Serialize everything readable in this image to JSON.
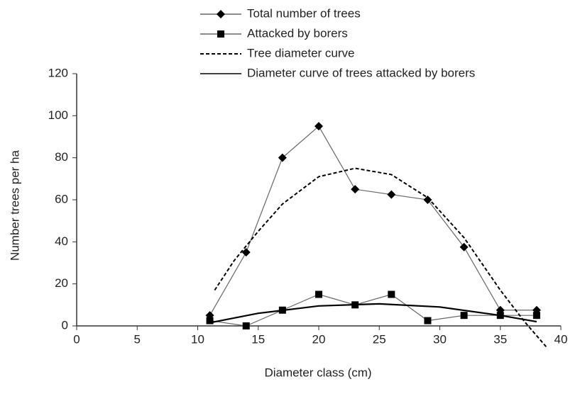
{
  "chart_data": {
    "type": "line",
    "xlabel": "Diameter class (cm)",
    "ylabel": "Number  trees per ha",
    "xlim": [
      0,
      40
    ],
    "xticks": [
      0,
      5,
      10,
      15,
      20,
      25,
      30,
      35,
      40
    ],
    "ylim": [
      0,
      120
    ],
    "yticks": [
      0,
      20,
      40,
      60,
      80,
      100,
      120
    ],
    "series": [
      {
        "name": "Total number of trees",
        "color": "#666666",
        "marker": "diamond",
        "dash": "solid",
        "x": [
          11,
          14,
          17,
          20,
          23,
          26,
          29,
          32,
          35,
          38
        ],
        "values": [
          5,
          35,
          80,
          95,
          65,
          62.5,
          60,
          37.5,
          7.5,
          7.5
        ]
      },
      {
        "name": "Attacked by borers",
        "color": "#666666",
        "marker": "square",
        "dash": "solid",
        "x": [
          11,
          14,
          17,
          20,
          23,
          26,
          29,
          32,
          35,
          38
        ],
        "values": [
          2.5,
          0,
          7.5,
          15,
          10,
          15,
          2.5,
          5,
          5,
          5
        ]
      },
      {
        "name": "Tree diameter curve",
        "color": "#000000",
        "marker": "none",
        "dash": "dashed",
        "x": [
          11.4,
          13,
          15,
          17,
          20,
          23,
          26,
          29,
          32,
          35,
          37,
          38.8
        ],
        "values": [
          17,
          31,
          45,
          58,
          71,
          75,
          72,
          61,
          42,
          17,
          2,
          -10
        ]
      },
      {
        "name": "Diameter curve of trees attacked by borers",
        "color": "#000000",
        "marker": "none",
        "dash": "solid",
        "x": [
          11,
          15,
          20,
          25,
          30,
          35,
          38
        ],
        "values": [
          1.5,
          6,
          9.5,
          10.5,
          9,
          5,
          2
        ]
      }
    ]
  }
}
